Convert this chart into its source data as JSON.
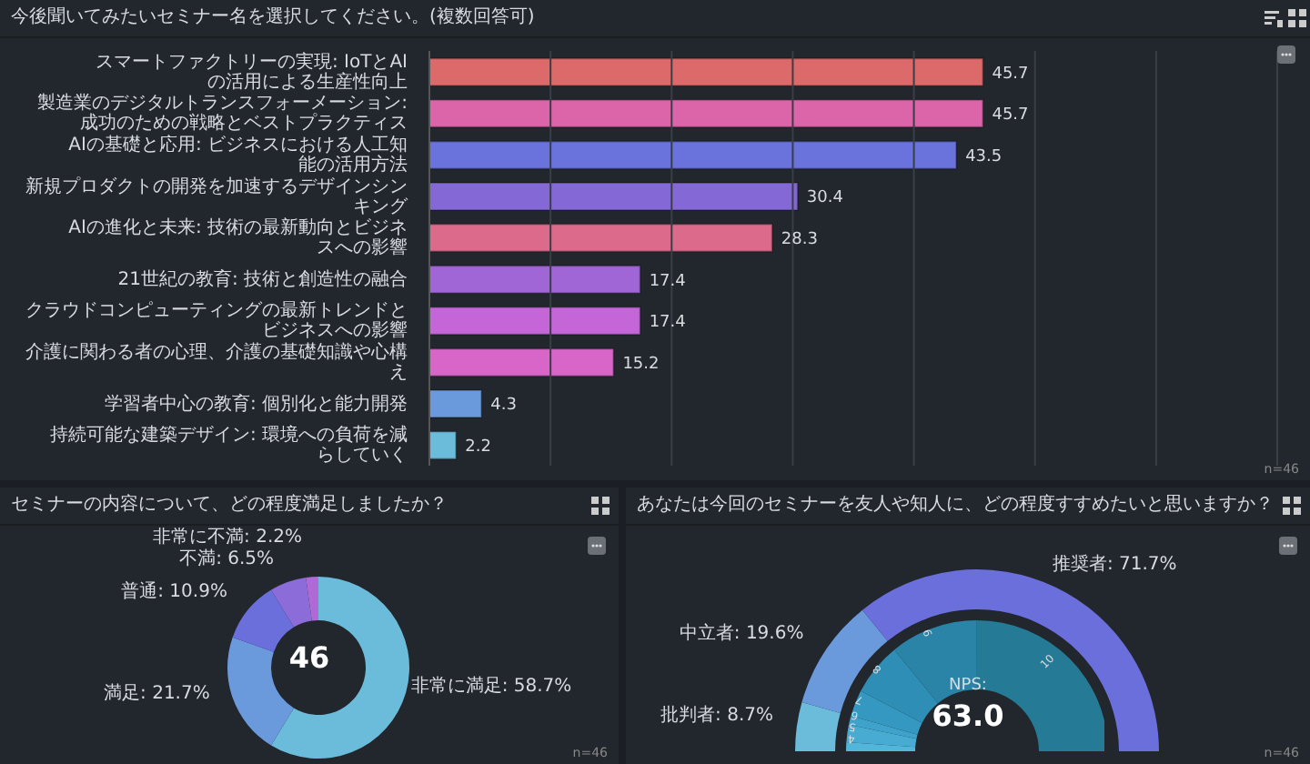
{
  "chart_data": [
    {
      "type": "bar",
      "orientation": "horizontal",
      "title": "今後聞いてみたいセミナー名を選択してください。(複数回答可)",
      "categories": [
        "スマートファクトリーの実現: IoTとAIの活用による生産性向上",
        "製造業のデジタルトランスフォーメーション: 成功のための戦略とベストプラクティス",
        "AIの基礎と応用: ビジネスにおける人工知能の活用方法",
        "新規プロダクトの開発を加速するデザインシンキング",
        "AIの進化と未来: 技術の最新動向とビジネスへの影響",
        "21世紀の教育: 技術と創造性の融合",
        "クラウドコンピューティングの最新トレンドとビジネスへの影響",
        "介護に関わる者の心理、介護の基礎知識や心構え",
        "学習者中心の教育: 個別化と能力開発",
        "持続可能な建築デザイン: 環境への負荷を減らしていく"
      ],
      "values": [
        45.7,
        45.7,
        43.5,
        30.4,
        28.3,
        17.4,
        17.4,
        15.2,
        4.3,
        2.2
      ],
      "colors": [
        "#dc6a6a",
        "#dc64a8",
        "#6a72dc",
        "#8468d6",
        "#dc6a8a",
        "#a066d6",
        "#c466d8",
        "#d866c8",
        "#6a9adc",
        "#6bbbdb"
      ],
      "xlim": [
        0,
        70
      ],
      "xticks": [
        {
          "value": 0,
          "label": null
        },
        {
          "value": 10,
          "label": null
        },
        {
          "value": 20,
          "label": null
        },
        {
          "value": 30,
          "label": null
        },
        {
          "value": 40,
          "label": null
        },
        {
          "value": 50,
          "label": null
        },
        {
          "value": 60,
          "label": null
        },
        {
          "value": 70,
          "label": null
        }
      ],
      "grid": "x",
      "tick_labels": "y",
      "data_labels": true,
      "annotations": [
        "n=46"
      ]
    },
    {
      "type": "donut",
      "title": "セミナーの内容について、どの程度満足しましたか？",
      "categories": [
        "非常に満足",
        "満足",
        "普通",
        "不満",
        "非常に不満"
      ],
      "values": [
        58.7,
        21.7,
        10.9,
        6.5,
        2.2
      ],
      "colors": [
        "#6bbbdb",
        "#6a99dc",
        "#6b6fdc",
        "#8c6cd8",
        "#b06ad6"
      ],
      "value_labels": [
        "58.7%",
        "21.7%",
        "10.9%",
        "6.5%",
        "2.2%"
      ],
      "annotations": [
        "46",
        "n=46"
      ]
    },
    {
      "type": "donut",
      "title": "あなたは今回のセミナーを友人や知人に、どの程度すすめたいと思いますか？",
      "categories": [
        "批判者",
        "中立者",
        "推奨者"
      ],
      "values": [
        8.7,
        19.6,
        71.7
      ],
      "colors": [
        "#6bbbdb",
        "#6a99dc",
        "#6b6fdc"
      ],
      "value_labels": [
        "8.7%",
        "19.6%",
        "71.7%"
      ],
      "annotations": [
        "NPS:",
        "63.0",
        "n=46"
      ]
    },
    {
      "type": "donut",
      "categories": [
        "4",
        "5",
        "6",
        "7",
        "8",
        "9",
        "10"
      ],
      "values": [
        2.2,
        4.3,
        2.2,
        6.5,
        13.0,
        21.7,
        50.0
      ],
      "colors": [
        "#52b6da",
        "#48acd2",
        "#3ea2ca",
        "#3598c0",
        "#2e8eb6",
        "#2a84a8",
        "#257a96"
      ]
    }
  ]
}
